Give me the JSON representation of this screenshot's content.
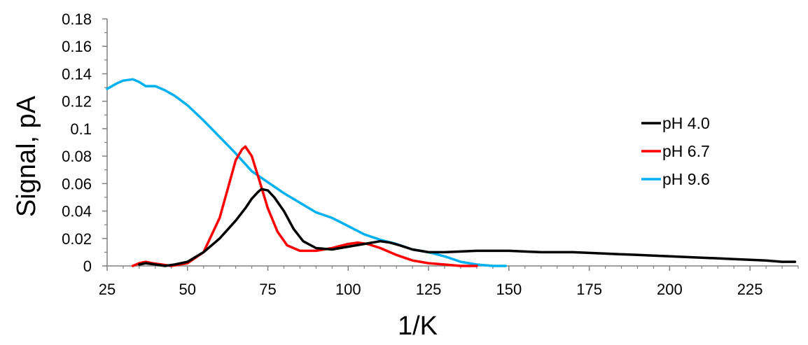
{
  "chart_data": {
    "type": "line",
    "title": "",
    "xlabel": "1/K",
    "ylabel": "Signal, pA",
    "xlim": [
      25,
      240
    ],
    "ylim": [
      0,
      0.18
    ],
    "xticks": [
      25,
      50,
      75,
      100,
      125,
      150,
      175,
      200,
      225
    ],
    "xtick_labels": [
      "25",
      "50",
      "75",
      "100",
      "125",
      "150",
      "175",
      "200",
      "225"
    ],
    "yticks": [
      0,
      0.02,
      0.04,
      0.06,
      0.08,
      0.1,
      0.12,
      0.14,
      0.16,
      0.18
    ],
    "ytick_labels": [
      "0",
      "0.02",
      "0.04",
      "0.06",
      "0.08",
      "0.1",
      "0.12",
      "0.14",
      "0.16",
      "0.18"
    ],
    "grid": false,
    "legend_position": "right",
    "series": [
      {
        "name": "pH 4.0",
        "color": "#000000",
        "x": [
          35,
          37,
          40,
          43,
          46,
          50,
          55,
          60,
          65,
          68,
          70,
          72,
          73,
          75,
          77,
          80,
          83,
          86,
          90,
          95,
          100,
          105,
          110,
          113,
          116,
          120,
          125,
          130,
          140,
          150,
          160,
          170,
          180,
          190,
          200,
          210,
          220,
          230,
          235,
          239
        ],
        "y": [
          0.001,
          0.002,
          0.001,
          0.0,
          0.001,
          0.003,
          0.01,
          0.02,
          0.033,
          0.042,
          0.049,
          0.054,
          0.056,
          0.055,
          0.05,
          0.04,
          0.027,
          0.018,
          0.013,
          0.012,
          0.014,
          0.016,
          0.018,
          0.017,
          0.015,
          0.012,
          0.01,
          0.01,
          0.011,
          0.011,
          0.01,
          0.01,
          0.009,
          0.008,
          0.007,
          0.006,
          0.005,
          0.004,
          0.003,
          0.003
        ]
      },
      {
        "name": "pH 6.7",
        "color": "#ff0000",
        "x": [
          33,
          35,
          37,
          39,
          42,
          45,
          50,
          55,
          60,
          63,
          65,
          67,
          68,
          70,
          72,
          75,
          78,
          81,
          85,
          90,
          95,
          100,
          103,
          106,
          110,
          115,
          120,
          125,
          130,
          135,
          140
        ],
        "y": [
          0.0,
          0.002,
          0.003,
          0.002,
          0.001,
          0.0,
          0.002,
          0.01,
          0.035,
          0.06,
          0.077,
          0.085,
          0.087,
          0.08,
          0.065,
          0.042,
          0.025,
          0.015,
          0.011,
          0.011,
          0.013,
          0.016,
          0.017,
          0.016,
          0.013,
          0.008,
          0.004,
          0.002,
          0.001,
          0.0,
          0.0
        ]
      },
      {
        "name": "pH 9.6",
        "color": "#00b0f0",
        "x": [
          25,
          28,
          30,
          33,
          35,
          37,
          40,
          43,
          46,
          50,
          55,
          60,
          65,
          70,
          75,
          80,
          85,
          90,
          95,
          100,
          105,
          110,
          115,
          120,
          125,
          130,
          135,
          140,
          145,
          149
        ],
        "y": [
          0.129,
          0.133,
          0.135,
          0.136,
          0.134,
          0.131,
          0.131,
          0.128,
          0.124,
          0.117,
          0.106,
          0.094,
          0.082,
          0.069,
          0.061,
          0.053,
          0.046,
          0.039,
          0.035,
          0.029,
          0.023,
          0.019,
          0.016,
          0.012,
          0.01,
          0.007,
          0.003,
          0.001,
          0.0,
          0.0
        ]
      }
    ]
  }
}
